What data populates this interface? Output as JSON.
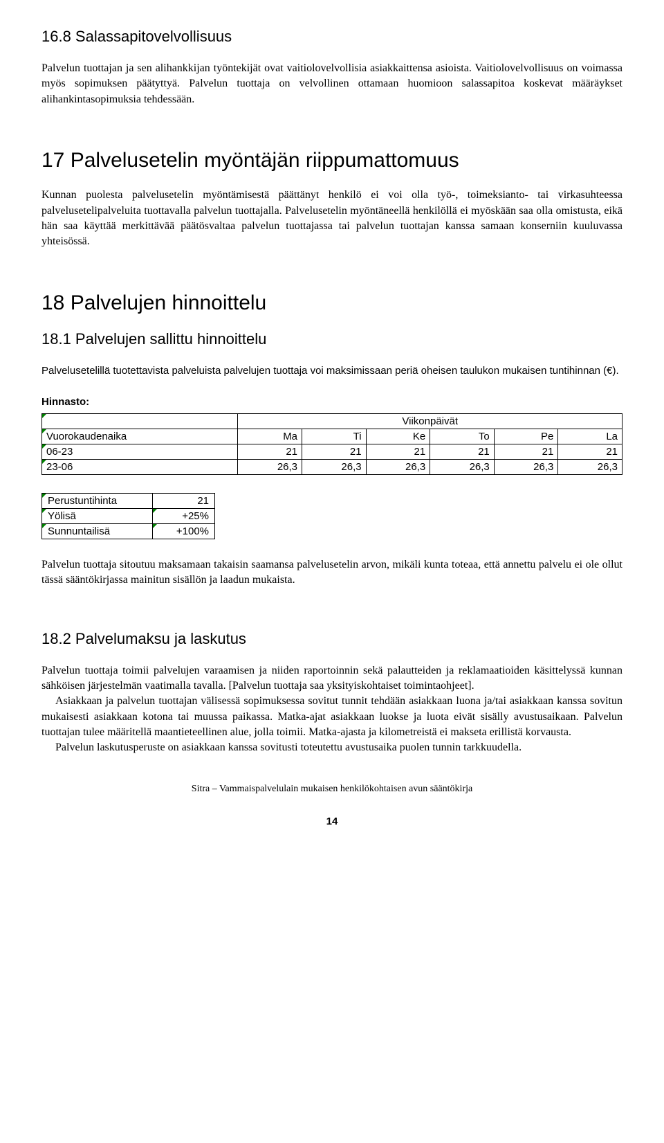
{
  "s168": {
    "heading": "16.8 Salassapitovelvollisuus",
    "p1": "Palvelun tuottajan ja sen alihankkijan työntekijät ovat vaitiolovelvollisia asiakkaittensa asioista. Vaitiolovelvollisuus on voimassa myös sopimuksen päätyttyä. Palvelun tuottaja on velvollinen ottamaan huomioon salassapitoa koskevat määräykset alihankintasopimuksia tehdessään."
  },
  "s17": {
    "heading": "17  Palvelusetelin myöntäjän riippumattomuus",
    "p1": "Kunnan puolesta palvelusetelin myöntämisestä päättänyt henkilö ei voi olla työ-, toimeksianto- tai virkasuhteessa palvelusetelipalveluita tuottavalla palvelun tuottajalla. Palvelusetelin myöntäneellä henkilöllä ei myöskään saa olla omistusta, eikä hän saa käyttää merkittävää päätösvaltaa palvelun tuottajassa tai palvelun tuottajan kanssa samaan konserniin kuuluvassa yhteisössä."
  },
  "s18": {
    "heading": "18  Palvelujen hinnoittelu"
  },
  "s181": {
    "heading": "18.1 Palvelujen sallittu hinnoittelu",
    "p1": "Palvelusetelillä tuotettavista palveluista palvelujen tuottaja voi maksimissaan periä oheisen taulukon mukaisen tuntihinnan (€).",
    "hinnasto_label": "Hinnasto:"
  },
  "table1": {
    "header_span": "Viikonpäivät",
    "row_header": "Vuorokaudenaika",
    "cols": [
      "Ma",
      "Ti",
      "Ke",
      "To",
      "Pe",
      "La"
    ],
    "rows": [
      {
        "label": "06-23",
        "vals": [
          "21",
          "21",
          "21",
          "21",
          "21",
          "21"
        ]
      },
      {
        "label": "23-06",
        "vals": [
          "26,3",
          "26,3",
          "26,3",
          "26,3",
          "26,3",
          "26,3"
        ]
      }
    ]
  },
  "table2": {
    "rows": [
      {
        "label": "Perustuntihinta",
        "val": "21"
      },
      {
        "label": "Yölisä",
        "val": "+25%"
      },
      {
        "label": "Sunnuntailisä",
        "val": "+100%"
      }
    ]
  },
  "s181b": {
    "p2": "Palvelun tuottaja sitoutuu maksamaan takaisin saamansa palvelusetelin arvon, mikäli kunta toteaa, että annettu palvelu ei ole ollut tässä sääntökirjassa mainitun sisällön ja laadun mukaista."
  },
  "s182": {
    "heading": "18.2 Palvelumaksu ja laskutus",
    "p1": "Palvelun tuottaja toimii palvelujen varaamisen ja niiden raportoinnin sekä palautteiden ja reklamaatioiden käsittelyssä kunnan sähköisen järjestelmän vaatimalla tavalla. [Palvelun tuottaja saa yksityiskohtaiset toimintaohjeet].",
    "p2": "Asiakkaan ja palvelun tuottajan välisessä sopimuksessa sovitut tunnit tehdään asiakkaan luona ja/tai asiakkaan kanssa sovitun mukaisesti asiakkaan kotona tai muussa paikassa. Matka-ajat asiakkaan luokse ja luota eivät sisälly avustusaikaan. Palvelun tuottajan tulee määritellä maantieteellinen alue, jolla toimii. Matka-ajasta ja kilometreistä ei makseta erillistä korvausta.",
    "p3": "Palvelun laskutusperuste on asiakkaan kanssa sovitusti toteutettu avustusaika puolen tunnin tarkkuudella."
  },
  "footer": {
    "text": "Sitra – Vammaispalvelulain mukaisen henkilökohtaisen avun sääntökirja",
    "page": "14"
  }
}
